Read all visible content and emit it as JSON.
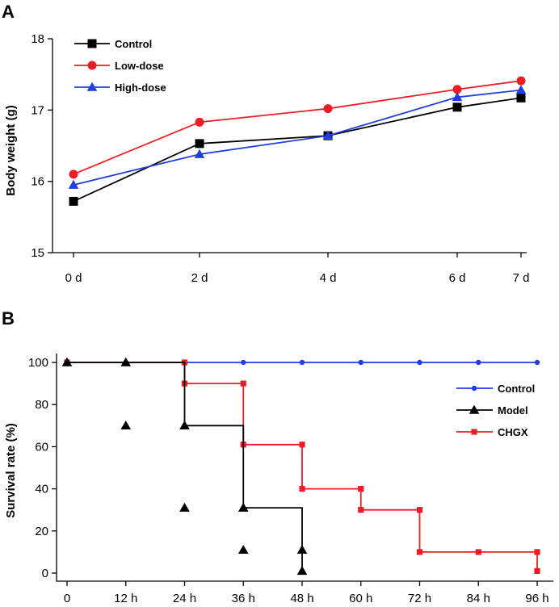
{
  "panels": {
    "a_label": "A",
    "b_label": "B"
  },
  "chart_data": [
    {
      "type": "line",
      "panel": "A",
      "title": "",
      "xlabel": "",
      "ylabel": "Body weight (g)",
      "x": [
        0,
        2,
        4,
        6,
        7
      ],
      "xticklabels": [
        "0 d",
        "2 d",
        "4 d",
        "6 d",
        "7 d"
      ],
      "ylim": [
        15,
        18
      ],
      "yticks": [
        15,
        16,
        17,
        18
      ],
      "grid": false,
      "legend_position": "top-left",
      "series": [
        {
          "name": "Control",
          "color": "#000000",
          "marker": "square",
          "values": [
            15.72,
            16.53,
            16.64,
            17.04,
            17.17
          ]
        },
        {
          "name": "Low-dose",
          "color": "#ee1c25",
          "marker": "circle",
          "values": [
            16.1,
            16.83,
            17.02,
            17.29,
            17.41
          ]
        },
        {
          "name": "High-dose",
          "color": "#1f3fe0",
          "marker": "triangle",
          "values": [
            15.95,
            16.38,
            16.64,
            17.18,
            17.28
          ]
        }
      ]
    },
    {
      "type": "line",
      "step": true,
      "panel": "B",
      "title": "",
      "xlabel": "",
      "ylabel": "Survival rate (%)",
      "xlim": [
        0,
        96
      ],
      "xticks": [
        0,
        12,
        24,
        36,
        48,
        60,
        72,
        84,
        96
      ],
      "xticklabels": [
        "0",
        "12 h",
        "24 h",
        "36 h",
        "48 h",
        "60 h",
        "72 h",
        "84 h",
        "96 h"
      ],
      "ylim": [
        0,
        100
      ],
      "yticks": [
        0,
        20,
        40,
        60,
        80,
        100
      ],
      "grid": false,
      "legend_position": "right",
      "series": [
        {
          "name": "Control",
          "color": "#1f3fe0",
          "marker": "circle",
          "x": [
            0,
            12,
            24,
            36,
            48,
            60,
            72,
            84,
            96
          ],
          "y": [
            100,
            100,
            100,
            100,
            100,
            100,
            100,
            100,
            100
          ]
        },
        {
          "name": "Model",
          "color": "#000000",
          "marker": "triangle",
          "x": [
            0,
            12,
            24,
            36,
            48,
            48
          ],
          "y": [
            100,
            100,
            70,
            31,
            11,
            1
          ],
          "markers": [
            [
              0,
              100
            ],
            [
              12,
              100
            ],
            [
              12,
              70
            ],
            [
              24,
              70
            ],
            [
              24,
              31
            ],
            [
              36,
              31
            ],
            [
              36,
              11
            ],
            [
              48,
              11
            ],
            [
              48,
              1
            ]
          ]
        },
        {
          "name": "CHGX",
          "color": "#ee1c25",
          "marker": "square",
          "x": [
            0,
            24,
            36,
            48,
            60,
            72,
            96,
            96
          ],
          "y": [
            100,
            90,
            61,
            40,
            30,
            10,
            10,
            1
          ],
          "markers": [
            [
              0,
              100
            ],
            [
              24,
              100
            ],
            [
              24,
              90
            ],
            [
              36,
              90
            ],
            [
              36,
              61
            ],
            [
              48,
              61
            ],
            [
              48,
              40
            ],
            [
              60,
              40
            ],
            [
              60,
              30
            ],
            [
              72,
              30
            ],
            [
              72,
              10
            ],
            [
              84,
              10
            ],
            [
              96,
              10
            ],
            [
              96,
              1
            ]
          ]
        }
      ]
    }
  ]
}
